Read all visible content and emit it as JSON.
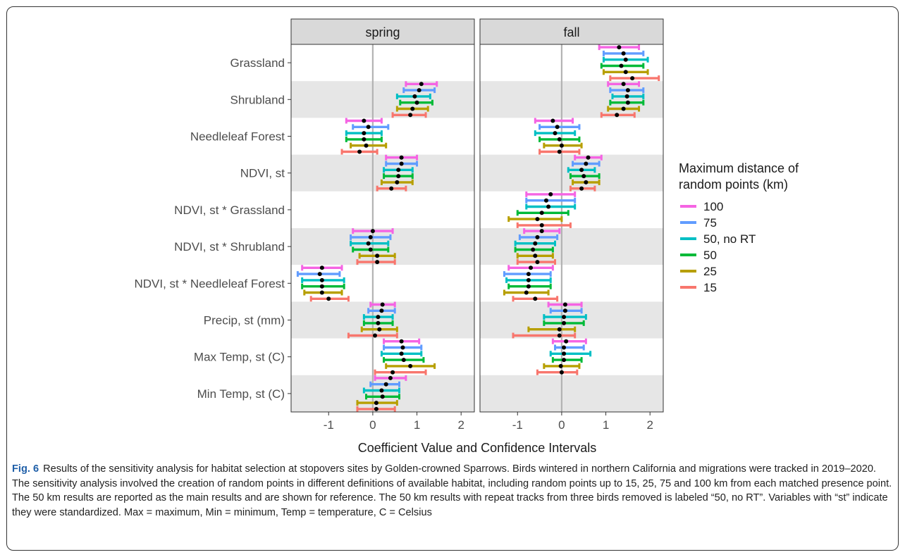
{
  "caption": {
    "label": "Fig. 6",
    "text": "Results of the sensitivity analysis for habitat selection at stopovers sites by Golden-crowned Sparrows. Birds wintered in northern California and migrations were tracked in 2019–2020. The sensitivity analysis involved the creation of random points in different definitions of available habitat, including random points up to 15, 25, 75 and 100 km from each matched presence point. The 50 km results are reported as the main results and are shown for reference. The 50 km results with repeat tracks from three birds removed is labeled “50, no RT”. Variables with “st” indicate they were standardized. Max = maximum, Min = minimum, Temp = temperature, C = Celsius"
  },
  "chart_data": {
    "type": "forest",
    "xlabel": "Coefficient Value and Confidence Intervals",
    "xlim": [
      -1.85,
      2.3
    ],
    "xticks": [
      -1,
      0,
      1,
      2
    ],
    "xtick_labels": [
      "-1",
      "0",
      "1",
      "2"
    ],
    "reference_line": 0,
    "panels": [
      "spring",
      "fall"
    ],
    "variables": [
      "Grassland",
      "Shrubland",
      "Needleleaf Forest",
      "NDVI, st",
      "NDVI, st * Grassland",
      "NDVI, st * Shrubland",
      "NDVI, st * Needleleaf Forest",
      "Precip, st (mm)",
      "Max Temp, st (C)",
      "Min Temp, st (C)"
    ],
    "legend_title": "Maximum distance of random points (km)",
    "legend_title_lines": [
      "Maximum distance of",
      "random points (km)"
    ],
    "series": [
      {
        "name": "100",
        "color": "#F564E3"
      },
      {
        "name": "75",
        "color": "#619CFF"
      },
      {
        "name": "50, no RT",
        "color": "#00BFC4"
      },
      {
        "name": "50",
        "color": "#00BA38"
      },
      {
        "name": "25",
        "color": "#B79F00"
      },
      {
        "name": "15",
        "color": "#F8766D"
      }
    ],
    "data": {
      "spring": {
        "Grassland": null,
        "Shrubland": [
          [
            1.1,
            0.75,
            1.45
          ],
          [
            1.05,
            0.7,
            1.4
          ],
          [
            0.95,
            0.55,
            1.3
          ],
          [
            1.0,
            0.62,
            1.35
          ],
          [
            0.9,
            0.55,
            1.25
          ],
          [
            0.85,
            0.45,
            1.2
          ]
        ],
        "Needleleaf Forest": [
          [
            -0.2,
            -0.6,
            0.2
          ],
          [
            -0.1,
            -0.45,
            0.35
          ],
          [
            -0.2,
            -0.6,
            0.2
          ],
          [
            -0.2,
            -0.6,
            0.2
          ],
          [
            -0.15,
            -0.5,
            0.3
          ],
          [
            -0.3,
            -0.7,
            0.1
          ]
        ],
        "NDVI, st": [
          [
            0.65,
            0.3,
            1.0
          ],
          [
            0.65,
            0.3,
            1.0
          ],
          [
            0.58,
            0.25,
            0.9
          ],
          [
            0.58,
            0.25,
            0.9
          ],
          [
            0.55,
            0.2,
            0.9
          ],
          [
            0.42,
            0.1,
            0.75
          ]
        ],
        "NDVI, st * Grassland": null,
        "NDVI, st * Shrubland": [
          [
            0.0,
            -0.45,
            0.45
          ],
          [
            -0.05,
            -0.5,
            0.4
          ],
          [
            -0.1,
            -0.5,
            0.35
          ],
          [
            -0.05,
            -0.45,
            0.35
          ],
          [
            0.1,
            -0.3,
            0.5
          ],
          [
            0.1,
            -0.35,
            0.5
          ]
        ],
        "NDVI, st * Needleleaf Forest": [
          [
            -1.15,
            -1.6,
            -0.7
          ],
          [
            -1.2,
            -1.7,
            -0.75
          ],
          [
            -1.15,
            -1.6,
            -0.65
          ],
          [
            -1.15,
            -1.6,
            -0.65
          ],
          [
            -1.15,
            -1.55,
            -0.7
          ],
          [
            -1.0,
            -1.4,
            -0.55
          ]
        ],
        "Precip, st (mm)": [
          [
            0.22,
            -0.05,
            0.5
          ],
          [
            0.2,
            -0.1,
            0.5
          ],
          [
            0.12,
            -0.2,
            0.45
          ],
          [
            0.12,
            -0.2,
            0.45
          ],
          [
            0.15,
            -0.25,
            0.55
          ],
          [
            0.05,
            -0.55,
            0.55
          ]
        ],
        "Max Temp, st (C)": [
          [
            0.65,
            0.25,
            1.05
          ],
          [
            0.68,
            0.25,
            1.1
          ],
          [
            0.65,
            0.2,
            1.1
          ],
          [
            0.7,
            0.25,
            1.15
          ],
          [
            0.85,
            0.3,
            1.4
          ],
          [
            0.45,
            0.05,
            1.2
          ]
        ],
        "Min Temp, st (C)": [
          [
            0.4,
            0.05,
            0.75
          ],
          [
            0.3,
            -0.05,
            0.6
          ],
          [
            0.2,
            -0.2,
            0.6
          ],
          [
            0.22,
            -0.15,
            0.6
          ],
          [
            0.08,
            -0.35,
            0.55
          ],
          [
            0.08,
            -0.35,
            0.5
          ]
        ]
      },
      "fall": {
        "Grassland": [
          [
            1.3,
            0.85,
            1.75
          ],
          [
            1.4,
            0.95,
            1.85
          ],
          [
            1.45,
            0.95,
            1.95
          ],
          [
            1.35,
            0.9,
            1.85
          ],
          [
            1.45,
            0.95,
            1.95
          ],
          [
            1.6,
            1.1,
            2.2
          ]
        ],
        "Shrubland": [
          [
            1.4,
            1.05,
            1.75
          ],
          [
            1.5,
            1.1,
            1.85
          ],
          [
            1.48,
            1.15,
            1.85
          ],
          [
            1.5,
            1.1,
            1.85
          ],
          [
            1.4,
            1.05,
            1.75
          ],
          [
            1.25,
            0.9,
            1.65
          ]
        ],
        "Needleleaf Forest": [
          [
            -0.2,
            -0.6,
            0.25
          ],
          [
            -0.1,
            -0.5,
            0.4
          ],
          [
            -0.15,
            -0.6,
            0.3
          ],
          [
            -0.05,
            -0.5,
            0.4
          ],
          [
            0.0,
            -0.4,
            0.45
          ],
          [
            -0.05,
            -0.5,
            0.4
          ]
        ],
        "NDVI, st": [
          [
            0.6,
            0.3,
            0.9
          ],
          [
            0.55,
            0.25,
            0.85
          ],
          [
            0.45,
            0.15,
            0.75
          ],
          [
            0.5,
            0.2,
            0.85
          ],
          [
            0.55,
            0.25,
            0.85
          ],
          [
            0.45,
            0.2,
            0.75
          ]
        ],
        "NDVI, st * Grassland": [
          [
            -0.25,
            -0.8,
            0.3
          ],
          [
            -0.35,
            -0.8,
            0.3
          ],
          [
            -0.3,
            -0.8,
            0.3
          ],
          [
            -0.45,
            -1.0,
            0.15
          ],
          [
            -0.55,
            -1.2,
            0.0
          ],
          [
            -0.45,
            -1.0,
            0.2
          ]
        ],
        "NDVI, st * Shrubland": [
          [
            -0.45,
            -0.85,
            -0.05
          ],
          [
            -0.55,
            -0.95,
            -0.1
          ],
          [
            -0.6,
            -1.05,
            -0.15
          ],
          [
            -0.65,
            -1.05,
            -0.2
          ],
          [
            -0.6,
            -1.0,
            -0.2
          ],
          [
            -0.55,
            -1.0,
            -0.15
          ]
        ],
        "NDVI, st * Needleleaf Forest": [
          [
            -0.7,
            -1.2,
            -0.2
          ],
          [
            -0.75,
            -1.3,
            -0.25
          ],
          [
            -0.75,
            -1.25,
            -0.25
          ],
          [
            -0.75,
            -1.2,
            -0.25
          ],
          [
            -0.8,
            -1.3,
            -0.3
          ],
          [
            -0.6,
            -1.1,
            -0.1
          ]
        ],
        "Precip, st (mm)": [
          [
            0.08,
            -0.3,
            0.45
          ],
          [
            0.08,
            -0.25,
            0.45
          ],
          [
            0.05,
            -0.4,
            0.55
          ],
          [
            0.05,
            -0.4,
            0.5
          ],
          [
            -0.05,
            -0.75,
            0.3
          ],
          [
            -0.05,
            -1.1,
            0.3
          ]
        ],
        "Max Temp, st (C)": [
          [
            0.1,
            -0.2,
            0.55
          ],
          [
            0.05,
            -0.15,
            0.5
          ],
          [
            0.05,
            -0.25,
            0.65
          ],
          [
            0.05,
            -0.2,
            0.45
          ],
          [
            -0.02,
            -0.4,
            0.4
          ],
          [
            0.0,
            -0.55,
            0.35
          ]
        ],
        "Min Temp, st (C)": null
      }
    }
  }
}
